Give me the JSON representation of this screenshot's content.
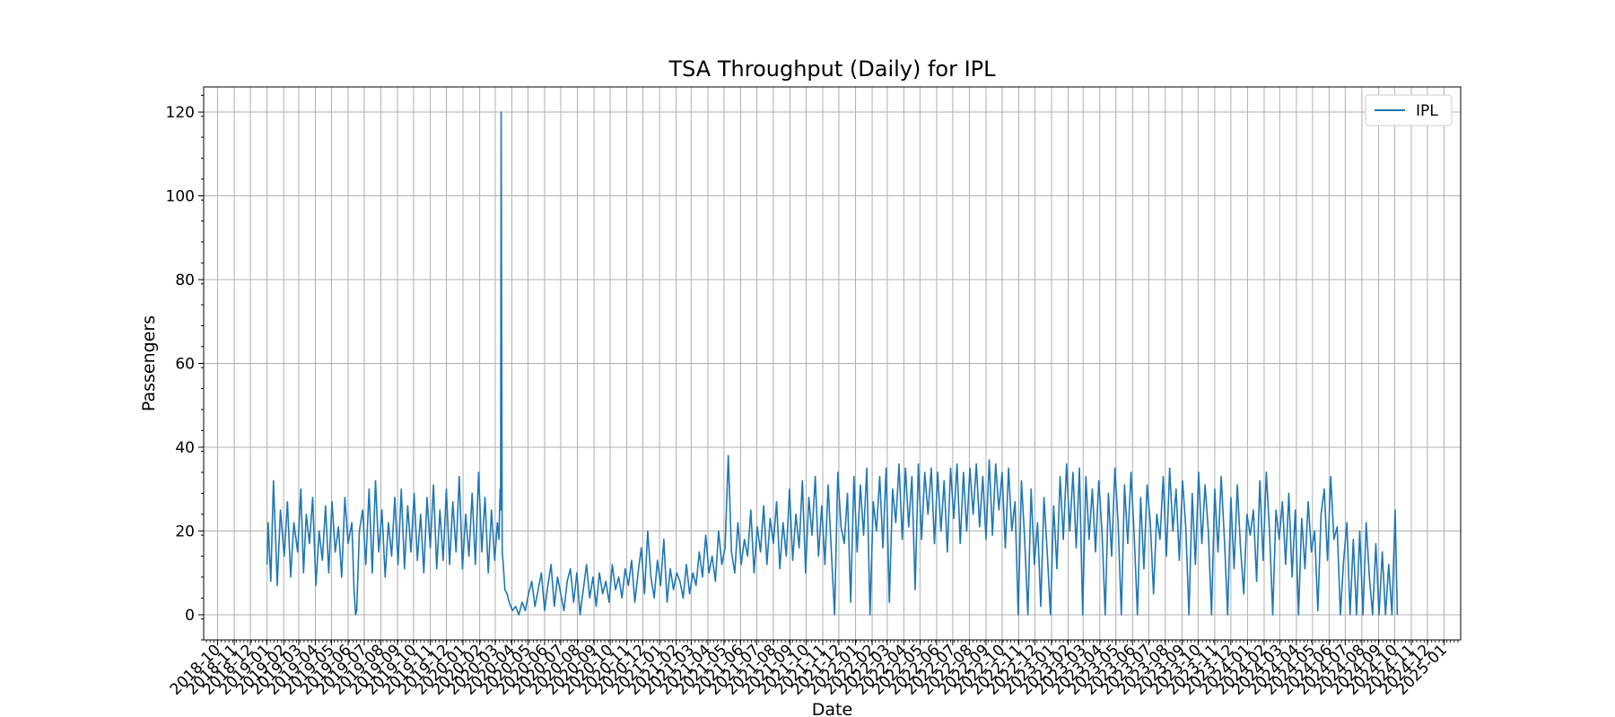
{
  "chart_data": {
    "type": "line",
    "title": "TSA Throughput (Daily) for IPL",
    "xlabel": "Date",
    "ylabel": "Passengers",
    "xlim": [
      "2018-09-05",
      "2025-02-01"
    ],
    "ylim": [
      -6,
      126
    ],
    "yticks": [
      0,
      20,
      40,
      60,
      80,
      100,
      120
    ],
    "xticks": [
      "2018-10",
      "2018-11",
      "2018-12",
      "2019-01",
      "2019-02",
      "2019-03",
      "2019-04",
      "2019-05",
      "2019-06",
      "2019-07",
      "2019-08",
      "2019-09",
      "2019-10",
      "2019-11",
      "2019-12",
      "2020-01",
      "2020-02",
      "2020-03",
      "2020-04",
      "2020-05",
      "2020-06",
      "2020-07",
      "2020-08",
      "2020-09",
      "2020-10",
      "2020-11",
      "2020-12",
      "2021-01",
      "2021-02",
      "2021-03",
      "2021-04",
      "2021-05",
      "2021-06",
      "2021-07",
      "2021-08",
      "2021-09",
      "2021-10",
      "2021-11",
      "2021-12",
      "2022-01",
      "2022-02",
      "2022-03",
      "2022-04",
      "2022-05",
      "2022-06",
      "2022-07",
      "2022-08",
      "2022-09",
      "2022-10",
      "2022-11",
      "2022-12",
      "2023-01",
      "2023-02",
      "2023-03",
      "2023-04",
      "2023-05",
      "2023-06",
      "2023-07",
      "2023-08",
      "2023-09",
      "2023-10",
      "2023-11",
      "2023-12",
      "2024-01",
      "2024-02",
      "2024-03",
      "2024-04",
      "2024-05",
      "2024-06",
      "2024-07",
      "2024-08",
      "2024-09",
      "2024-10",
      "2024-11",
      "2024-12",
      "2025-01"
    ],
    "grid": true,
    "legend_position": "top-right",
    "color": "#1f77b4",
    "series": [
      {
        "name": "IPL",
        "x": [
          "2019-01-01",
          "2019-01-03",
          "2019-01-08",
          "2019-01-13",
          "2019-01-17",
          "2019-01-20",
          "2019-01-26",
          "2019-02-02",
          "2019-02-08",
          "2019-02-14",
          "2019-02-20",
          "2019-02-27",
          "2019-03-05",
          "2019-03-10",
          "2019-03-15",
          "2019-03-21",
          "2019-03-27",
          "2019-04-02",
          "2019-04-08",
          "2019-04-14",
          "2019-04-20",
          "2019-04-26",
          "2019-05-02",
          "2019-05-08",
          "2019-05-14",
          "2019-05-20",
          "2019-05-26",
          "2019-06-01",
          "2019-06-08",
          "2019-06-12",
          "2019-06-15",
          "2019-06-17",
          "2019-06-22",
          "2019-06-28",
          "2019-07-04",
          "2019-07-10",
          "2019-07-16",
          "2019-07-22",
          "2019-07-28",
          "2019-08-03",
          "2019-08-09",
          "2019-08-15",
          "2019-08-21",
          "2019-08-27",
          "2019-09-02",
          "2019-09-08",
          "2019-09-14",
          "2019-09-20",
          "2019-09-26",
          "2019-10-02",
          "2019-10-08",
          "2019-10-14",
          "2019-10-20",
          "2019-10-26",
          "2019-11-01",
          "2019-11-07",
          "2019-11-13",
          "2019-11-19",
          "2019-11-25",
          "2019-12-01",
          "2019-12-07",
          "2019-12-13",
          "2019-12-19",
          "2019-12-25",
          "2019-12-31",
          "2020-01-06",
          "2020-01-12",
          "2020-01-18",
          "2020-01-24",
          "2020-01-30",
          "2020-02-05",
          "2020-02-11",
          "2020-02-17",
          "2020-02-23",
          "2020-02-29",
          "2020-03-05",
          "2020-03-08",
          "2020-03-10",
          "2020-03-11",
          "2020-03-12",
          "2020-03-14",
          "2020-03-16",
          "2020-03-19",
          "2020-03-23",
          "2020-03-27",
          "2020-04-02",
          "2020-04-08",
          "2020-04-14",
          "2020-04-20",
          "2020-04-26",
          "2020-05-02",
          "2020-05-08",
          "2020-05-14",
          "2020-05-20",
          "2020-05-26",
          "2020-06-01",
          "2020-06-07",
          "2020-06-13",
          "2020-06-19",
          "2020-06-25",
          "2020-07-01",
          "2020-07-07",
          "2020-07-13",
          "2020-07-19",
          "2020-07-25",
          "2020-07-31",
          "2020-08-06",
          "2020-08-12",
          "2020-08-18",
          "2020-08-24",
          "2020-08-30",
          "2020-09-05",
          "2020-09-11",
          "2020-09-17",
          "2020-09-23",
          "2020-09-29",
          "2020-10-05",
          "2020-10-11",
          "2020-10-17",
          "2020-10-23",
          "2020-10-29",
          "2020-11-04",
          "2020-11-10",
          "2020-11-16",
          "2020-11-22",
          "2020-11-28",
          "2020-12-04",
          "2020-12-10",
          "2020-12-16",
          "2020-12-22",
          "2020-12-28",
          "2021-01-03",
          "2021-01-09",
          "2021-01-15",
          "2021-01-21",
          "2021-01-27",
          "2021-02-02",
          "2021-02-08",
          "2021-02-14",
          "2021-02-20",
          "2021-02-26",
          "2021-03-04",
          "2021-03-10",
          "2021-03-16",
          "2021-03-22",
          "2021-03-28",
          "2021-04-03",
          "2021-04-09",
          "2021-04-15",
          "2021-04-21",
          "2021-04-27",
          "2021-05-03",
          "2021-05-09",
          "2021-05-15",
          "2021-05-21",
          "2021-05-27",
          "2021-06-02",
          "2021-06-08",
          "2021-06-14",
          "2021-06-20",
          "2021-06-26",
          "2021-07-02",
          "2021-07-08",
          "2021-07-14",
          "2021-07-20",
          "2021-07-26",
          "2021-08-01",
          "2021-08-07",
          "2021-08-13",
          "2021-08-19",
          "2021-08-25",
          "2021-08-31",
          "2021-09-06",
          "2021-09-12",
          "2021-09-18",
          "2021-09-24",
          "2021-09-30",
          "2021-10-06",
          "2021-10-12",
          "2021-10-18",
          "2021-10-24",
          "2021-10-30",
          "2021-11-05",
          "2021-11-11",
          "2021-11-17",
          "2021-11-23",
          "2021-11-29",
          "2021-12-05",
          "2021-12-11",
          "2021-12-17",
          "2021-12-23",
          "2021-12-29",
          "2022-01-04",
          "2022-01-10",
          "2022-01-16",
          "2022-01-22",
          "2022-01-28",
          "2022-02-03",
          "2022-02-09",
          "2022-02-15",
          "2022-02-21",
          "2022-02-27",
          "2022-03-05",
          "2022-03-11",
          "2022-03-17",
          "2022-03-23",
          "2022-03-29",
          "2022-04-04",
          "2022-04-10",
          "2022-04-16",
          "2022-04-22",
          "2022-04-28",
          "2022-05-04",
          "2022-05-10",
          "2022-05-16",
          "2022-05-22",
          "2022-05-28",
          "2022-06-03",
          "2022-06-09",
          "2022-06-15",
          "2022-06-21",
          "2022-06-27",
          "2022-07-03",
          "2022-07-09",
          "2022-07-15",
          "2022-07-21",
          "2022-07-27",
          "2022-08-02",
          "2022-08-08",
          "2022-08-14",
          "2022-08-20",
          "2022-08-26",
          "2022-09-01",
          "2022-09-07",
          "2022-09-13",
          "2022-09-19",
          "2022-09-25",
          "2022-10-01",
          "2022-10-07",
          "2022-10-13",
          "2022-10-19",
          "2022-10-25",
          "2022-10-31",
          "2022-11-06",
          "2022-11-12",
          "2022-11-18",
          "2022-11-24",
          "2022-11-30",
          "2022-12-06",
          "2022-12-12",
          "2022-12-18",
          "2022-12-24",
          "2022-12-30",
          "2023-01-05",
          "2023-01-11",
          "2023-01-17",
          "2023-01-23",
          "2023-01-29",
          "2023-02-04",
          "2023-02-10",
          "2023-02-16",
          "2023-02-22",
          "2023-02-28",
          "2023-03-06",
          "2023-03-12",
          "2023-03-18",
          "2023-03-24",
          "2023-03-30",
          "2023-04-05",
          "2023-04-11",
          "2023-04-17",
          "2023-04-23",
          "2023-04-29",
          "2023-05-05",
          "2023-05-11",
          "2023-05-17",
          "2023-05-23",
          "2023-05-29",
          "2023-06-04",
          "2023-06-10",
          "2023-06-16",
          "2023-06-22",
          "2023-06-28",
          "2023-07-04",
          "2023-07-10",
          "2023-07-16",
          "2023-07-22",
          "2023-07-28",
          "2023-08-03",
          "2023-08-09",
          "2023-08-15",
          "2023-08-21",
          "2023-08-27",
          "2023-09-02",
          "2023-09-08",
          "2023-09-14",
          "2023-09-20",
          "2023-09-26",
          "2023-10-02",
          "2023-10-08",
          "2023-10-14",
          "2023-10-20",
          "2023-10-26",
          "2023-11-01",
          "2023-11-07",
          "2023-11-13",
          "2023-11-19",
          "2023-11-25",
          "2023-12-01",
          "2023-12-07",
          "2023-12-13",
          "2023-12-19",
          "2023-12-25",
          "2023-12-31",
          "2024-01-06",
          "2024-01-12",
          "2024-01-18",
          "2024-01-24",
          "2024-01-30",
          "2024-02-05",
          "2024-02-11",
          "2024-02-17",
          "2024-02-23",
          "2024-02-29",
          "2024-03-06",
          "2024-03-12",
          "2024-03-18",
          "2024-03-24",
          "2024-03-30",
          "2024-04-05",
          "2024-04-11",
          "2024-04-17",
          "2024-04-23",
          "2024-04-29",
          "2024-05-05",
          "2024-05-11",
          "2024-05-17",
          "2024-05-23",
          "2024-05-29",
          "2024-06-04",
          "2024-06-10",
          "2024-06-16",
          "2024-06-22",
          "2024-06-28",
          "2024-07-04",
          "2024-07-10",
          "2024-07-16",
          "2024-07-22",
          "2024-07-28",
          "2024-08-03",
          "2024-08-09",
          "2024-08-15",
          "2024-08-21",
          "2024-08-27",
          "2024-09-02",
          "2024-09-08",
          "2024-09-14",
          "2024-09-20",
          "2024-09-26",
          "2024-10-02",
          "2024-10-06"
        ],
        "values": [
          12,
          22,
          8,
          32,
          18,
          7,
          25,
          14,
          27,
          9,
          22,
          15,
          30,
          10,
          24,
          17,
          28,
          7,
          20,
          13,
          26,
          10,
          27,
          15,
          21,
          9,
          28,
          17,
          22,
          6,
          0,
          1,
          20,
          25,
          12,
          30,
          10,
          32,
          15,
          25,
          9,
          22,
          14,
          28,
          12,
          30,
          11,
          26,
          15,
          29,
          13,
          24,
          10,
          28,
          16,
          31,
          11,
          25,
          13,
          30,
          12,
          27,
          15,
          33,
          11,
          24,
          14,
          29,
          12,
          34,
          15,
          28,
          10,
          25,
          13,
          22,
          18,
          30,
          25,
          120,
          15,
          12,
          6,
          5,
          3,
          1,
          2,
          0,
          3,
          1,
          5,
          8,
          2,
          6,
          10,
          1,
          7,
          12,
          2,
          9,
          5,
          1,
          8,
          11,
          3,
          10,
          0,
          6,
          12,
          4,
          9,
          2,
          10,
          5,
          8,
          3,
          12,
          6,
          9,
          4,
          11,
          7,
          13,
          3,
          10,
          16,
          5,
          20,
          9,
          4,
          13,
          7,
          18,
          3,
          11,
          6,
          10,
          8,
          4,
          12,
          5,
          10,
          7,
          15,
          9,
          19,
          10,
          14,
          8,
          20,
          12,
          16,
          38,
          15,
          10,
          22,
          12,
          18,
          14,
          25,
          10,
          21,
          15,
          26,
          12,
          23,
          17,
          27,
          11,
          22,
          14,
          30,
          13,
          24,
          16,
          32,
          10,
          28,
          19,
          33,
          14,
          26,
          12,
          31,
          15,
          0,
          34,
          21,
          17,
          29,
          3,
          33,
          15,
          31,
          19,
          35,
          0,
          27,
          20,
          33,
          16,
          35,
          3,
          30,
          22,
          36,
          18,
          35,
          21,
          33,
          6,
          36,
          18,
          34,
          24,
          35,
          17,
          34,
          20,
          32,
          15,
          35,
          23,
          36,
          17,
          34,
          20,
          35,
          24,
          36,
          21,
          33,
          18,
          37,
          19,
          36,
          25,
          34,
          16,
          35,
          20,
          27,
          0,
          32,
          18,
          0,
          30,
          12,
          22,
          2,
          28,
          15,
          0,
          26,
          11,
          33,
          18,
          36,
          20,
          34,
          16,
          35,
          0,
          33,
          18,
          30,
          15,
          32,
          20,
          0,
          29,
          14,
          35,
          22,
          0,
          31,
          17,
          34,
          19,
          0,
          28,
          11,
          31,
          22,
          5,
          24,
          18,
          33,
          14,
          35,
          20,
          30,
          13,
          32,
          21,
          0,
          29,
          12,
          34,
          17,
          31,
          20,
          0,
          30,
          15,
          33,
          18,
          0,
          28,
          11,
          31,
          16,
          5,
          24,
          19,
          25,
          8,
          32,
          13,
          34,
          20,
          0,
          25,
          18,
          27,
          12,
          29,
          9,
          25,
          0,
          23,
          11,
          27,
          15,
          20,
          1,
          24,
          30,
          13,
          33,
          18,
          21,
          0,
          13,
          22,
          0,
          18,
          0,
          20,
          0,
          22,
          9,
          0,
          17,
          0,
          15,
          0,
          12,
          0,
          25,
          0
        ]
      }
    ]
  }
}
